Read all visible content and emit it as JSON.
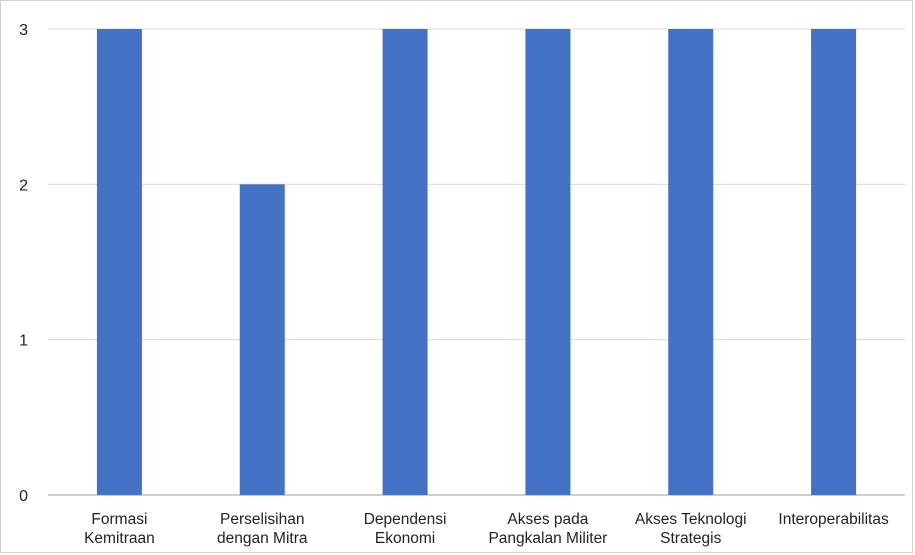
{
  "chart_data": {
    "type": "bar",
    "categories": [
      [
        "Formasi",
        "Kemitraan"
      ],
      [
        "Perselisihan",
        "dengan Mitra"
      ],
      [
        "Dependensi",
        "Ekonomi"
      ],
      [
        "Akses pada",
        "Pangkalan Militer"
      ],
      [
        "Akses Teknologi",
        "Strategis"
      ],
      [
        "Interoperabilitas"
      ]
    ],
    "values": [
      3,
      2,
      3,
      3,
      3,
      3
    ],
    "yticks": [
      "0",
      "1",
      "2",
      "3"
    ],
    "ylim": [
      0,
      3
    ],
    "grid": true,
    "bar_color": "#4472C4",
    "grid_color": "#d9d9d9",
    "axis_color": "#9e9e9e",
    "title": "",
    "xlabel": "",
    "ylabel": ""
  }
}
